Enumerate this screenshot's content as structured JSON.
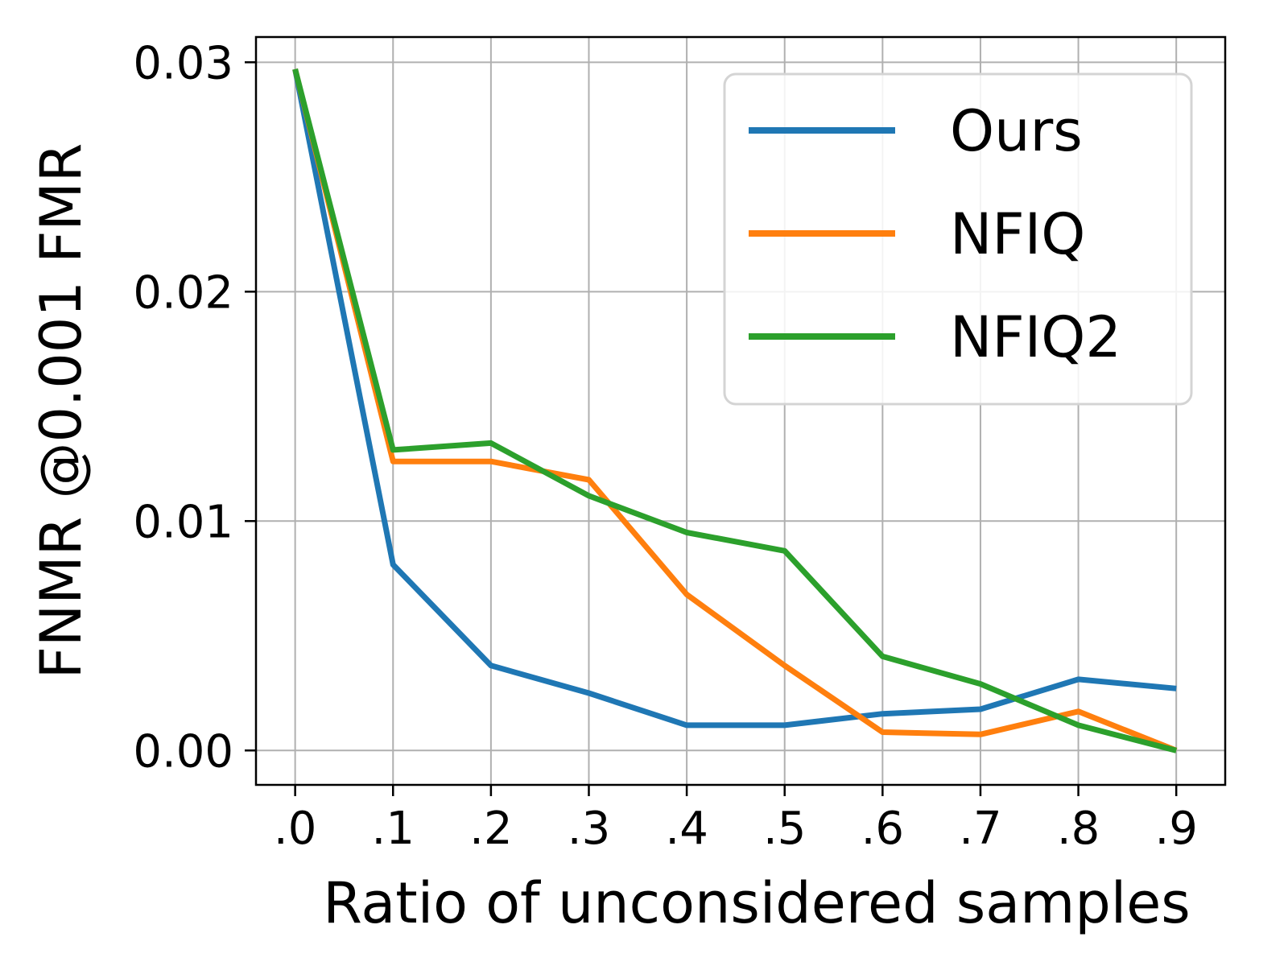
{
  "chart_data": {
    "type": "line",
    "x": [
      0.0,
      0.1,
      0.2,
      0.3,
      0.4,
      0.5,
      0.6,
      0.7,
      0.8,
      0.9
    ],
    "x_tick_labels": [
      ".0",
      ".1",
      ".2",
      ".3",
      ".4",
      ".5",
      ".6",
      ".7",
      ".8",
      ".9"
    ],
    "y_ticks": [
      0.0,
      0.01,
      0.02,
      0.03
    ],
    "y_tick_labels": [
      "0.00",
      "0.01",
      "0.02",
      "0.03"
    ],
    "xlabel": "Ratio of unconsidered samples",
    "ylabel": "FNMR @0.001 FMR",
    "xlim": [
      -0.04,
      0.95
    ],
    "ylim": [
      -0.0015,
      0.0311
    ],
    "grid": true,
    "legend_position": "top-right",
    "series": [
      {
        "name": "Ours",
        "color": "#1f77b4",
        "values": [
          0.0297,
          0.0081,
          0.0037,
          0.0025,
          0.0011,
          0.0011,
          0.0016,
          0.0018,
          0.0031,
          0.0027
        ]
      },
      {
        "name": "NFIQ",
        "color": "#ff7f0e",
        "values": [
          0.0297,
          0.0126,
          0.0126,
          0.0118,
          0.0068,
          0.0037,
          0.0008,
          0.0007,
          0.0017,
          0.0
        ]
      },
      {
        "name": "NFIQ2",
        "color": "#2ca02c",
        "values": [
          0.0297,
          0.0131,
          0.0134,
          0.0111,
          0.0095,
          0.0087,
          0.0041,
          0.0029,
          0.0011,
          0.0
        ]
      }
    ]
  }
}
